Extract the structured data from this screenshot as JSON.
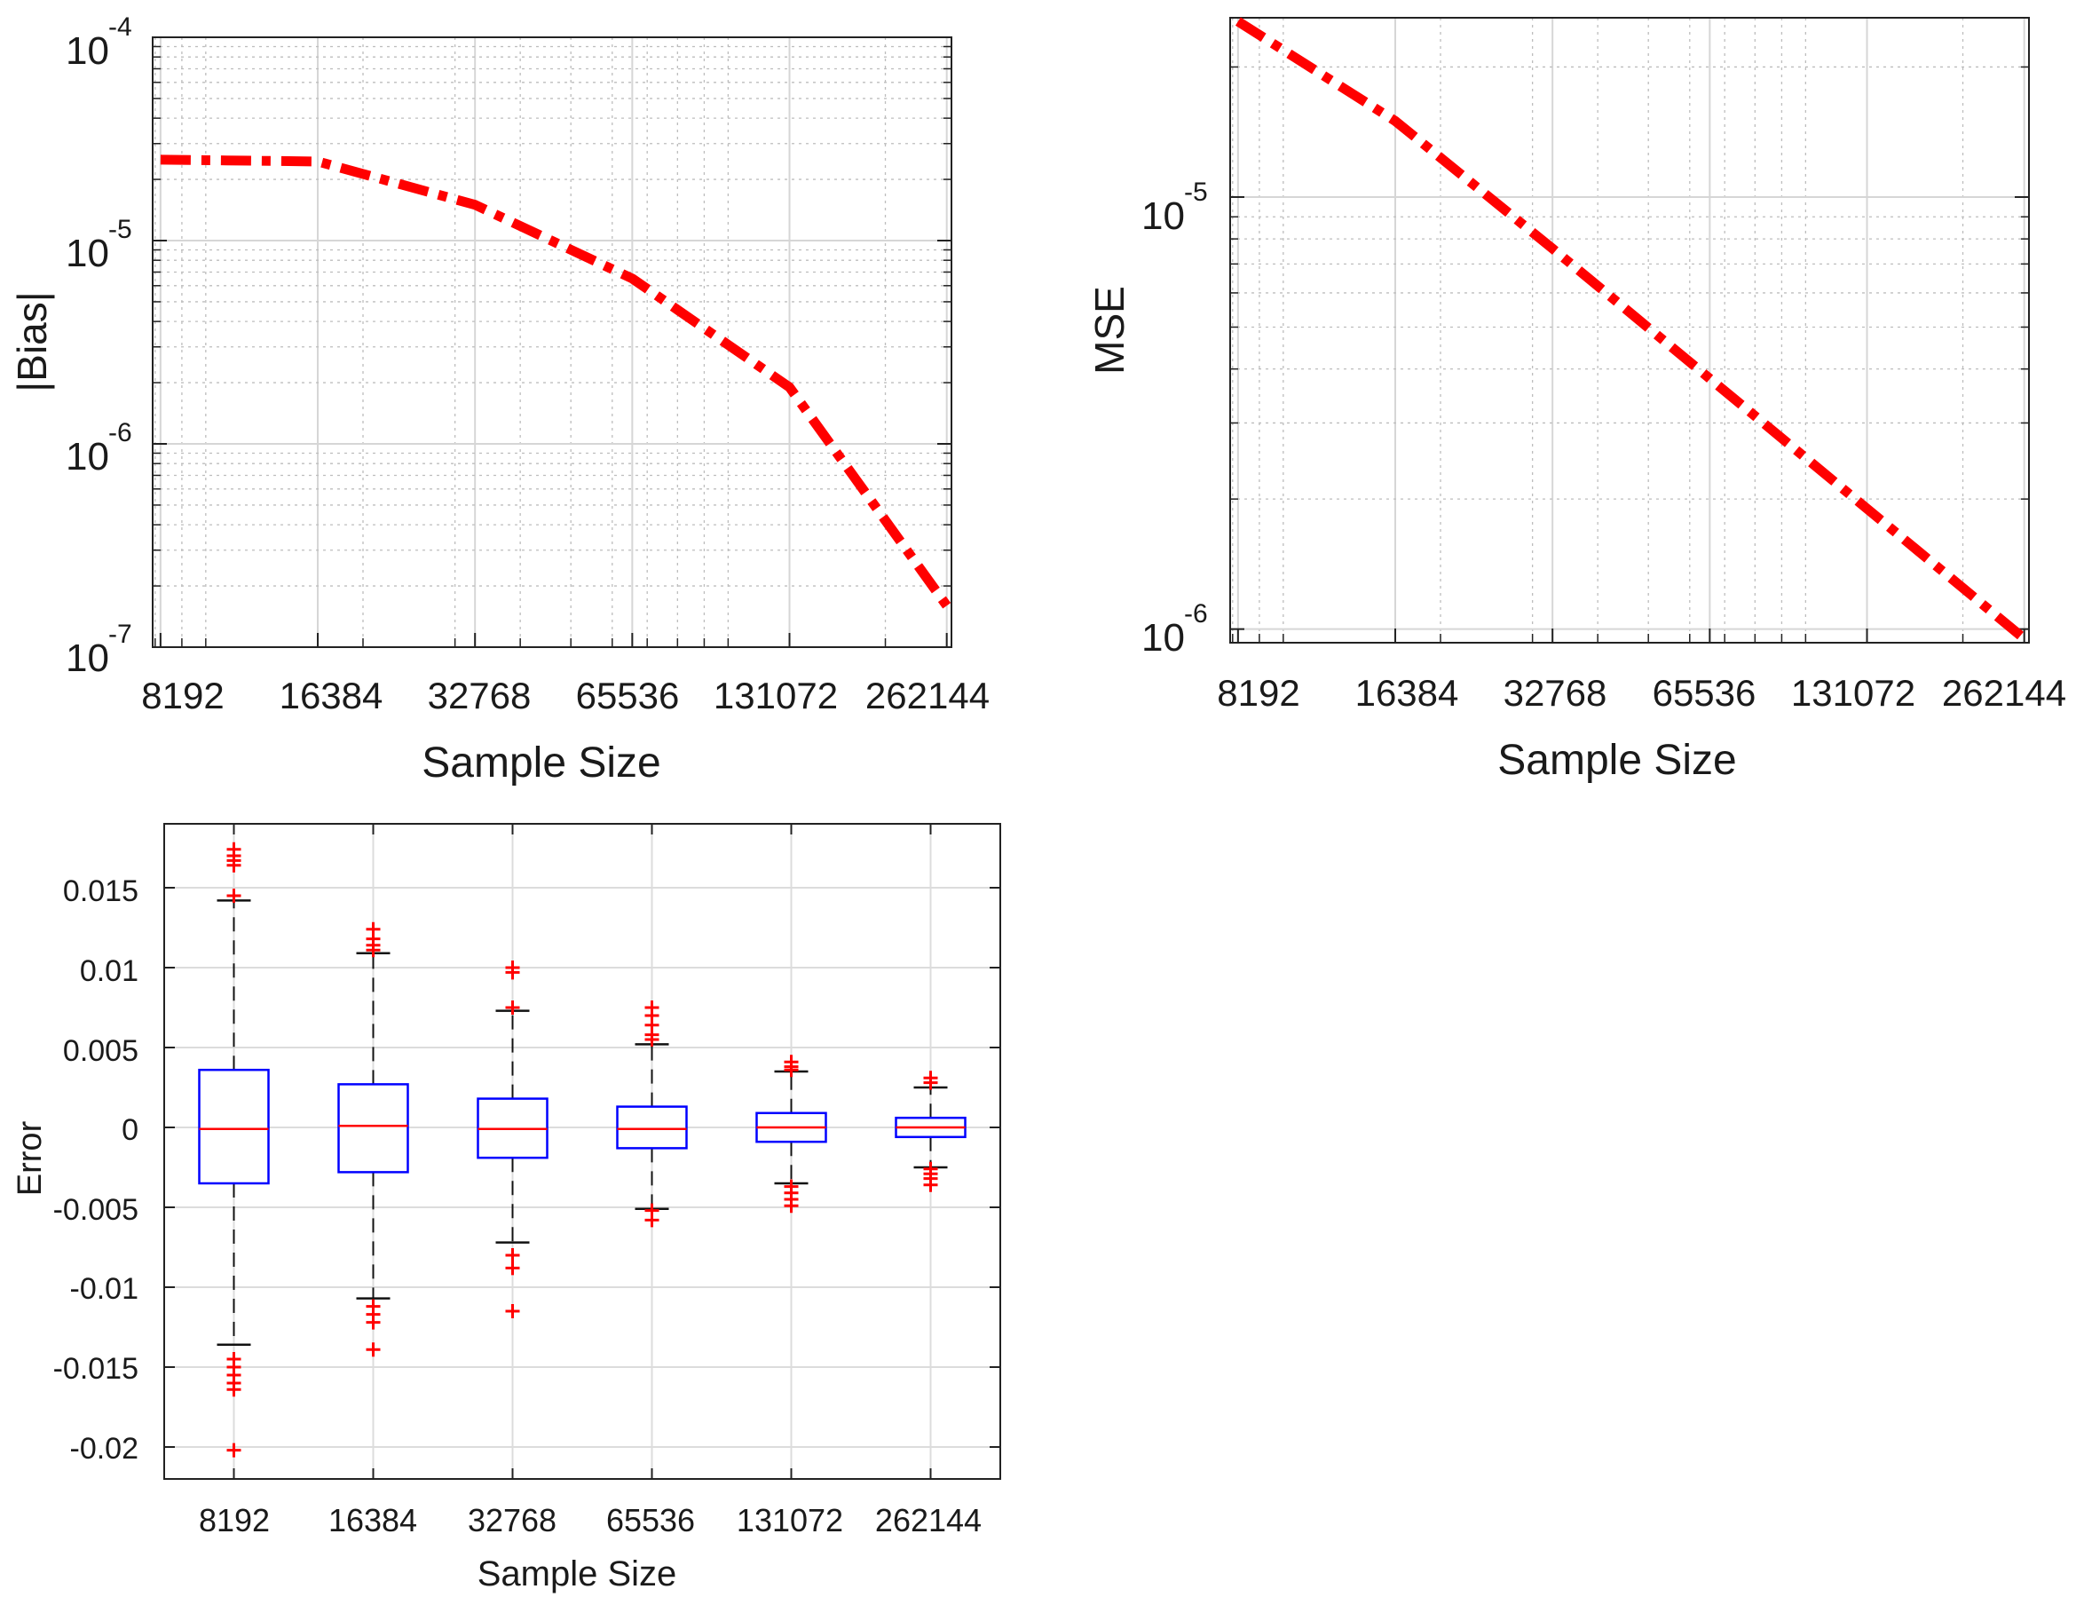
{
  "chart_data": [
    {
      "id": "bias",
      "type": "line",
      "scale": "log-log",
      "xlabel": "Sample Size",
      "ylabel": "|Bias|",
      "x": [
        8192,
        16384,
        32768,
        65536,
        131072,
        262144
      ],
      "x_tick_labels": [
        "8192",
        "16384",
        "32768",
        "65536",
        "131072",
        "262144"
      ],
      "ylim": [
        1e-07,
        0.0001
      ],
      "y_tick_exponents": [
        "-4",
        "-5",
        "-6",
        "-7"
      ],
      "series": [
        {
          "name": "|Bias|",
          "values": [
            2.5e-05,
            2.45e-05,
            1.5e-05,
            6.5e-06,
            1.9e-06,
            1.6e-07
          ],
          "color": "#ff0000",
          "style": "dash-dot"
        }
      ],
      "grid": true
    },
    {
      "id": "mse",
      "type": "line",
      "scale": "log-log",
      "xlabel": "Sample Size",
      "ylabel": "MSE",
      "x": [
        8192,
        16384,
        32768,
        65536,
        131072,
        262144
      ],
      "x_tick_labels": [
        "8192",
        "16384",
        "32768",
        "65536",
        "131072",
        "262144"
      ],
      "ylim": [
        9.3e-07,
        2.6e-05
      ],
      "y_tick_exponents": [
        "-5",
        "-6"
      ],
      "series": [
        {
          "name": "MSE",
          "values": [
            2.55e-05,
            1.5e-05,
            7.6e-06,
            3.8e-06,
            1.9e-06,
            9.5e-07
          ],
          "color": "#ff0000",
          "style": "dash-dot"
        }
      ],
      "grid": true
    },
    {
      "id": "error",
      "type": "box",
      "xlabel": "Sample Size",
      "ylabel": "Error",
      "categories": [
        "8192",
        "16384",
        "32768",
        "65536",
        "131072",
        "262144"
      ],
      "ylim": [
        -0.022,
        0.019
      ],
      "y_ticks": [
        0.015,
        0.01,
        0.005,
        0,
        -0.005,
        -0.01,
        -0.015,
        -0.02
      ],
      "y_tick_labels": [
        "0.015",
        "0.01",
        "0.005",
        "0",
        "-0.005",
        "-0.01",
        "-0.015",
        "-0.02"
      ],
      "boxes": [
        {
          "q1": -0.0035,
          "median": -0.0001,
          "q3": 0.0036,
          "whisker_low": -0.0136,
          "whisker_high": 0.0142,
          "outliers": [
            0.0174,
            0.017,
            0.0167,
            0.0164,
            0.0145,
            -0.0145,
            -0.015,
            -0.0155,
            -0.016,
            -0.0164,
            -0.0202
          ]
        },
        {
          "q1": -0.0028,
          "median": 0.0001,
          "q3": 0.0027,
          "whisker_low": -0.0107,
          "whisker_high": 0.0109,
          "outliers": [
            0.0124,
            0.0118,
            0.0114,
            0.0111,
            -0.0112,
            -0.0117,
            -0.0122,
            -0.0139
          ]
        },
        {
          "q1": -0.0019,
          "median": -0.0001,
          "q3": 0.0018,
          "whisker_low": -0.0072,
          "whisker_high": 0.0073,
          "outliers": [
            0.01,
            0.0097,
            0.0075,
            -0.008,
            -0.0088,
            -0.0115
          ]
        },
        {
          "q1": -0.0013,
          "median": -0.0001,
          "q3": 0.0013,
          "whisker_low": -0.0051,
          "whisker_high": 0.0052,
          "outliers": [
            0.0075,
            0.007,
            0.0064,
            0.0058,
            0.0055,
            -0.0052,
            -0.0058
          ]
        },
        {
          "q1": -0.0009,
          "median": 0.0,
          "q3": 0.0009,
          "whisker_low": -0.0035,
          "whisker_high": 0.0035,
          "outliers": [
            0.0041,
            0.0038,
            0.0036,
            -0.0037,
            -0.0041,
            -0.0045,
            -0.0049
          ]
        },
        {
          "q1": -0.0006,
          "median": 0.0,
          "q3": 0.0006,
          "whisker_low": -0.0025,
          "whisker_high": 0.0025,
          "outliers": [
            0.0031,
            0.0028,
            -0.0026,
            -0.0029,
            -0.0032,
            -0.0036
          ]
        }
      ],
      "box_color": "#0000ff",
      "median_color": "#ff0000",
      "outlier_color": "#ff0000",
      "grid": true
    }
  ]
}
